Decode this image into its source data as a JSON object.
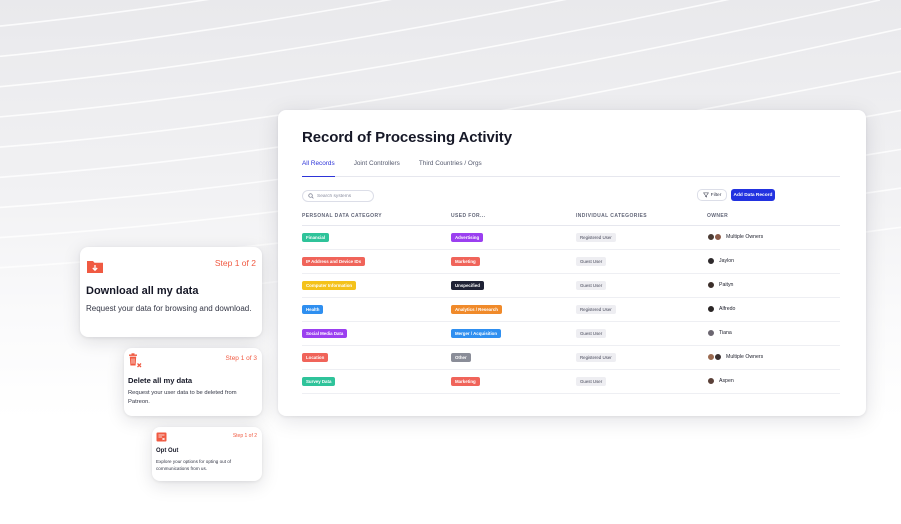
{
  "record": {
    "title": "Record of Processing Activity",
    "tabs": [
      {
        "label": "All Records",
        "active": true
      },
      {
        "label": "Joint Controllers",
        "active": false
      },
      {
        "label": "Third Countries / Orgs",
        "active": false
      }
    ],
    "search": {
      "placeholder": "Search systems"
    },
    "filter_label": "Filter",
    "add_label": "Add Data Record",
    "columns": [
      "PERSONAL DATA CATEGORY",
      "USED FOR...",
      "INDIVIDUAL CATEGORIES",
      "OWNER"
    ],
    "rows": [
      {
        "category": "Financial",
        "category_color": "#2fc39a",
        "used_for": "Advertising",
        "used_for_color": "#9b3ff0",
        "individual": "Registered User",
        "owner": "Multiple Owners",
        "avatars": [
          "#4a3b34",
          "#8a5a48"
        ]
      },
      {
        "category": "IP Address and Device IDs",
        "category_color": "#f0645a",
        "used_for": "Marketing",
        "used_for_color": "#f0645a",
        "individual": "Guest User",
        "owner": "Jaylon",
        "avatars": [
          "#2e2a2c"
        ]
      },
      {
        "category": "Computer Information",
        "category_color": "#f4c21b",
        "used_for": "Unspecified",
        "used_for_color": "#1f2235",
        "individual": "Guest User",
        "owner": "Paityn",
        "avatars": [
          "#3b2e2a"
        ]
      },
      {
        "category": "Health",
        "category_color": "#2f8ff0",
        "used_for": "Analytics / Research",
        "used_for_color": "#f08a2a",
        "individual": "Registered User",
        "owner": "Alfredo",
        "avatars": [
          "#2a2626"
        ]
      },
      {
        "category": "Social Media Data",
        "category_color": "#9b3ff0",
        "used_for": "Merger / Acquisition",
        "used_for_color": "#2f8ff0",
        "individual": "Guest User",
        "owner": "Tiana",
        "avatars": [
          "#6b6670"
        ]
      },
      {
        "category": "Location",
        "category_color": "#f0645a",
        "used_for": "Other",
        "used_for_color": "#8a8d98",
        "individual": "Registered User",
        "owner": "Multiple Owners",
        "avatars": [
          "#9a6a50",
          "#3a3030"
        ]
      },
      {
        "category": "Survey Data",
        "category_color": "#2fc39a",
        "used_for": "Marketing",
        "used_for_color": "#f0645a",
        "individual": "Guest User",
        "owner": "Aspen",
        "avatars": [
          "#5a4038"
        ]
      }
    ]
  },
  "steps": [
    {
      "step": "Step 1 of 2",
      "title": "Download all my data",
      "desc": "Request your data for browsing and download.",
      "icon": "download-folder-icon"
    },
    {
      "step": "Step 1 of 3",
      "title": "Delete all my data",
      "desc": "Request your user data to be deleted from Patreon.",
      "icon": "trash-delete-icon"
    },
    {
      "step": "Step 1 of 2",
      "title": "Opt Out",
      "desc": "Explore your options for opting out of communications from us.",
      "icon": "opt-out-icon"
    }
  ],
  "colors": {
    "accent": "#2232e0",
    "step_accent": "#f05a42"
  }
}
